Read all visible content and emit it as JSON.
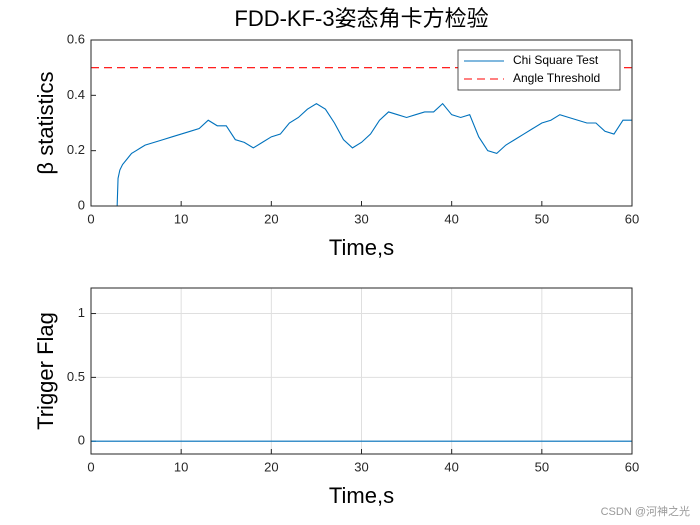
{
  "chart_data": [
    {
      "type": "line",
      "title": "FDD-KF-3姿态角卡方检验",
      "xlabel": "Time,s",
      "ylabel": "β statistics",
      "xlim": [
        0,
        60
      ],
      "ylim": [
        0,
        0.6
      ],
      "xticks": [
        0,
        10,
        20,
        30,
        40,
        50,
        60
      ],
      "yticks": [
        0,
        0.2,
        0.4,
        0.6
      ],
      "grid": false,
      "legend": "northeast",
      "series": [
        {
          "name": "Chi Square Test",
          "color": "#0072bd",
          "style": "solid",
          "x": [
            0,
            2.9,
            3,
            3.2,
            3.5,
            4,
            4.5,
            5,
            5.5,
            6,
            7,
            8,
            9,
            10,
            11,
            12,
            13,
            14,
            15,
            16,
            17,
            18,
            19,
            20,
            21,
            22,
            23,
            24,
            25,
            26,
            27,
            28,
            29,
            30,
            31,
            32,
            33,
            34,
            35,
            36,
            37,
            38,
            39,
            40,
            41,
            42,
            43,
            44,
            45,
            46,
            47,
            48,
            49,
            50,
            51,
            52,
            53,
            54,
            55,
            56,
            57,
            58,
            59,
            60
          ],
          "values": [
            0,
            0,
            0.1,
            0.13,
            0.15,
            0.17,
            0.19,
            0.2,
            0.21,
            0.22,
            0.23,
            0.24,
            0.25,
            0.26,
            0.27,
            0.28,
            0.31,
            0.29,
            0.29,
            0.24,
            0.23,
            0.21,
            0.23,
            0.25,
            0.26,
            0.3,
            0.32,
            0.35,
            0.37,
            0.35,
            0.3,
            0.24,
            0.21,
            0.23,
            0.26,
            0.31,
            0.34,
            0.33,
            0.32,
            0.33,
            0.34,
            0.34,
            0.37,
            0.33,
            0.32,
            0.33,
            0.25,
            0.2,
            0.19,
            0.22,
            0.24,
            0.26,
            0.28,
            0.3,
            0.31,
            0.33,
            0.32,
            0.31,
            0.3,
            0.3,
            0.27,
            0.26,
            0.31,
            0.31
          ]
        },
        {
          "name": "Angle Threshold",
          "color": "#ff0000",
          "style": "dashed",
          "x": [
            0,
            60
          ],
          "values": [
            0.5,
            0.5
          ]
        }
      ]
    },
    {
      "type": "line",
      "xlabel": "Time,s",
      "ylabel": "Trigger Flag",
      "xlim": [
        0,
        60
      ],
      "ylim": [
        -0.1,
        1.2
      ],
      "xticks": [
        0,
        10,
        20,
        30,
        40,
        50,
        60
      ],
      "yticks": [
        0,
        0.5,
        1
      ],
      "grid": true,
      "series": [
        {
          "color": "#0072bd",
          "style": "solid",
          "x": [
            0,
            60
          ],
          "values": [
            0,
            0
          ]
        }
      ]
    }
  ],
  "watermark": "CSDN @河神之光"
}
